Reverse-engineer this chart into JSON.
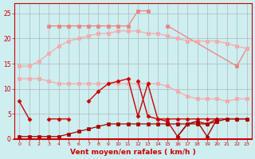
{
  "xlabel": "Vent moyen/en rafales ( km/h )",
  "x": [
    0,
    1,
    2,
    3,
    4,
    5,
    6,
    7,
    8,
    9,
    10,
    11,
    12,
    13,
    14,
    15,
    16,
    17,
    18,
    19,
    20,
    21,
    22,
    23
  ],
  "bg_color": "#ceeef0",
  "line_top_pink": [
    null,
    null,
    null,
    22.5,
    22.5,
    22.5,
    22.5,
    22.5,
    22.5,
    22.5,
    22.5,
    22.5,
    25.5,
    25.5,
    null,
    22.5,
    null,
    null,
    null,
    null,
    null,
    null,
    null,
    null
  ],
  "line_top_pink_seg2": [
    null,
    null,
    null,
    null,
    null,
    null,
    null,
    null,
    null,
    null,
    null,
    null,
    null,
    null,
    null,
    null,
    null,
    null,
    null,
    null,
    null,
    null,
    14.5,
    18.0
  ],
  "line_upper_smooth": [
    14.5,
    14.5,
    15.5,
    17.0,
    18.5,
    19.5,
    20.0,
    20.5,
    21.0,
    21.0,
    21.5,
    21.5,
    21.5,
    21.0,
    21.0,
    20.5,
    20.0,
    19.5,
    19.5,
    19.5,
    19.5,
    19.0,
    18.5,
    18.0
  ],
  "line_lower_smooth": [
    12.0,
    12.0,
    12.0,
    11.5,
    11.0,
    11.0,
    11.0,
    11.0,
    11.0,
    11.0,
    11.0,
    11.0,
    11.0,
    11.0,
    11.0,
    10.5,
    9.5,
    8.5,
    8.0,
    8.0,
    8.0,
    7.5,
    8.0,
    8.0
  ],
  "line_mid_red": [
    7.5,
    4.0,
    null,
    4.0,
    4.0,
    4.0,
    null,
    7.5,
    9.5,
    11.0,
    11.5,
    12.0,
    4.5,
    11.0,
    4.0,
    4.0,
    4.0,
    4.0,
    4.0,
    4.0,
    4.0,
    4.0,
    4.0,
    4.0
  ],
  "line_jagged_red": [
    null,
    null,
    null,
    null,
    null,
    null,
    null,
    null,
    null,
    null,
    null,
    null,
    11.5,
    4.5,
    4.0,
    3.5,
    0.5,
    3.0,
    3.5,
    3.0,
    4.0,
    null,
    null,
    null
  ],
  "line_bottom_grad": [
    0.5,
    0.5,
    0.5,
    0.5,
    0.5,
    1.0,
    1.5,
    2.0,
    2.5,
    3.0,
    3.0,
    3.0,
    3.0,
    3.0,
    3.0,
    3.0,
    3.0,
    3.0,
    3.0,
    3.0,
    3.5,
    4.0,
    4.0,
    4.0
  ],
  "line_dark_zigzag": [
    null,
    null,
    null,
    null,
    null,
    null,
    null,
    null,
    null,
    null,
    null,
    null,
    null,
    null,
    null,
    null,
    0.5,
    3.0,
    3.5,
    0.5,
    4.0,
    null,
    null,
    null
  ],
  "pink_color": "#f08080",
  "light_pink_color": "#f4aaaa",
  "red_color": "#cc0000",
  "dark_red_color": "#aa0000"
}
